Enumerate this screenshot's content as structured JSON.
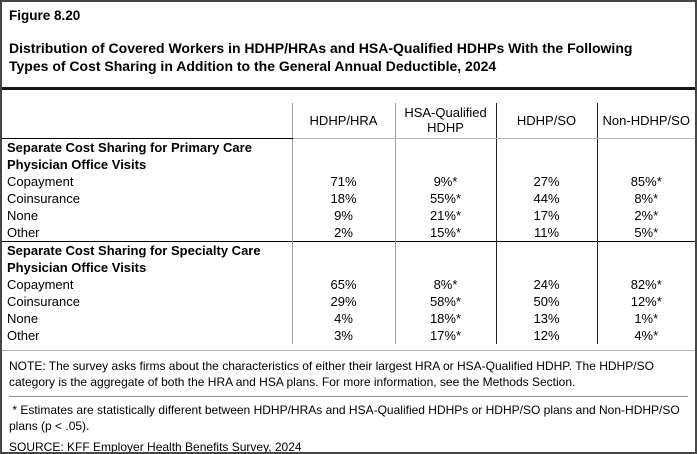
{
  "figure": {
    "label": "Figure 8.20",
    "title": "Distribution of Covered Workers in HDHP/HRAs and HSA-Qualified HDHPs With the Following Types of Cost Sharing in Addition to the General Annual Deductible, 2024"
  },
  "table": {
    "columns": [
      "HDHP/HRA",
      "HSA-Qualified HDHP",
      "HDHP/SO",
      "Non-HDHP/SO"
    ],
    "sections": [
      {
        "header": "Separate Cost Sharing for Primary Care Physician Office Visits",
        "rows": [
          {
            "label": "Copayment",
            "values": [
              "71%",
              "9%*",
              "27%",
              "85%*"
            ]
          },
          {
            "label": "Coinsurance",
            "values": [
              "18%",
              "55%*",
              "44%",
              "8%*"
            ]
          },
          {
            "label": "None",
            "values": [
              "9%",
              "21%*",
              "17%",
              "2%*"
            ]
          },
          {
            "label": "Other",
            "values": [
              "2%",
              "15%*",
              "11%",
              "5%*"
            ]
          }
        ]
      },
      {
        "header": "Separate Cost Sharing for Specialty Care Physician Office Visits",
        "rows": [
          {
            "label": "Copayment",
            "values": [
              "65%",
              "8%*",
              "24%",
              "82%*"
            ]
          },
          {
            "label": "Coinsurance",
            "values": [
              "29%",
              "58%*",
              "50%",
              "12%*"
            ]
          },
          {
            "label": "None",
            "values": [
              "4%",
              "18%*",
              "13%",
              "1%*"
            ]
          },
          {
            "label": "Other",
            "values": [
              "3%",
              "17%*",
              "12%",
              "4%*"
            ]
          }
        ]
      }
    ]
  },
  "notes": {
    "note": "NOTE: The survey asks firms about the characteristics of either their largest HRA or HSA-Qualified HDHP. The HDHP/SO category is the aggregate of both the HRA and HSA plans. For more information, see the Methods Section.",
    "estimates": " * Estimates are statistically different between HDHP/HRAs and HSA-Qualified HDHPs or HDHP/SO plans and Non-HDHP/SO plans (p < .05).",
    "source": "SOURCE: KFF Employer Health Benefits Survey, 2024"
  },
  "colors": {
    "text": "#000000",
    "page_border": "#454545",
    "title_rule": "#161616",
    "divider_light": "#9c9c9c",
    "divider_dark": "#242424",
    "light_gray_border": "#b5b5b5",
    "note_separator": "#8f8f8f"
  }
}
